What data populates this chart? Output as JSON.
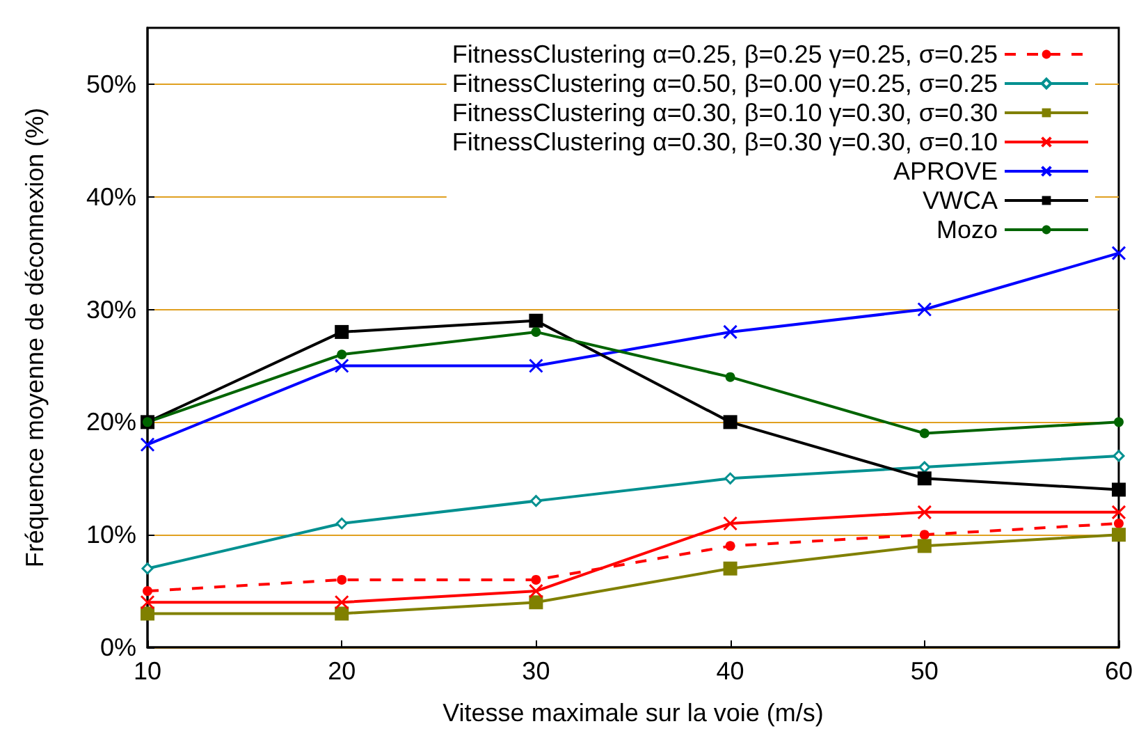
{
  "chart_data": {
    "type": "line",
    "xlabel": "Vitesse maximale sur la voie (m/s)",
    "ylabel": "Fréquence moyenne de déconnexion (%)",
    "x": [
      10,
      20,
      30,
      40,
      50,
      60
    ],
    "series": [
      {
        "name": "FitnessClustering α=0.25, β=0.25 γ=0.25, σ=0.25",
        "color": "#ff0000",
        "marker": "circle",
        "line_style": "dashed",
        "values": [
          5,
          6,
          6,
          9,
          10,
          11
        ]
      },
      {
        "name": "FitnessClustering α=0.50, β=0.00 γ=0.25, σ=0.25",
        "color": "#009090",
        "marker": "diamond",
        "values": [
          7,
          11,
          13,
          15,
          16,
          17
        ]
      },
      {
        "name": "FitnessClustering α=0.30, β=0.10 γ=0.30, σ=0.30",
        "color": "#808000",
        "marker": "square",
        "values": [
          3,
          3,
          4,
          7,
          9,
          10
        ]
      },
      {
        "name": "FitnessClustering α=0.30, β=0.30 γ=0.30, σ=0.10",
        "color": "#ff0000",
        "marker": "cross",
        "values": [
          4,
          4,
          5,
          11,
          12,
          12
        ]
      },
      {
        "name": "APROVE",
        "color": "#0000ff",
        "marker": "cross",
        "values": [
          18,
          25,
          25,
          28,
          30,
          35
        ]
      },
      {
        "name": "VWCA",
        "color": "#000000",
        "marker": "square",
        "values": [
          20,
          28,
          29,
          20,
          15,
          14
        ]
      },
      {
        "name": "Mozo",
        "color": "#006400",
        "marker": "circle",
        "values": [
          20,
          26,
          28,
          24,
          19,
          20
        ]
      }
    ],
    "xlim": [
      10,
      60
    ],
    "xticks": [
      10,
      20,
      30,
      40,
      50,
      60
    ],
    "ylim": [
      0,
      55
    ],
    "yticks": [
      {
        "value": 0,
        "label": "0%"
      },
      {
        "value": 10,
        "label": "10%"
      },
      {
        "value": 20,
        "label": "20%"
      },
      {
        "value": 30,
        "label": "30%"
      },
      {
        "value": 40,
        "label": "40%"
      },
      {
        "value": 50,
        "label": "50%"
      }
    ],
    "grid": "y",
    "legend": "top right",
    "line_style": "solid"
  }
}
